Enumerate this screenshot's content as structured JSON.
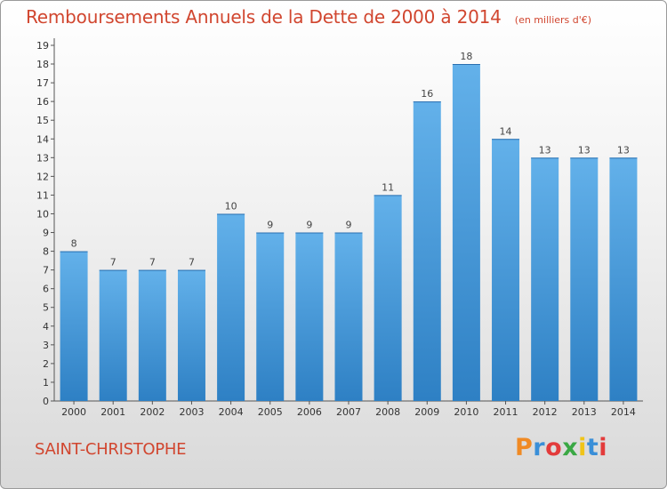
{
  "header": {
    "title": "Remboursements Annuels de la Dette de 2000 à 2014",
    "unit": "(en milliers d'€)"
  },
  "footer": {
    "place_name": "SAINT-CHRISTOPHE",
    "logo_text": "Proxiti"
  },
  "colors": {
    "title": "#d1462f",
    "bar_light": "#63b1ea",
    "bar_dark": "#2e80c4",
    "logo": [
      "#f08a24",
      "#3a8fd8",
      "#e33b3b",
      "#3aa844",
      "#f0c419",
      "#3a8fd8",
      "#e33b3b"
    ]
  },
  "chart_data": {
    "type": "bar",
    "categories": [
      "2000",
      "2001",
      "2002",
      "2003",
      "2004",
      "2005",
      "2006",
      "2007",
      "2008",
      "2009",
      "2010",
      "2011",
      "2012",
      "2013",
      "2014"
    ],
    "values": [
      8,
      7,
      7,
      7,
      10,
      9,
      9,
      9,
      11,
      16,
      18,
      14,
      13,
      13,
      13
    ],
    "ylim": [
      0,
      19
    ],
    "yticks": [
      0,
      1,
      2,
      3,
      4,
      5,
      6,
      7,
      8,
      9,
      10,
      11,
      12,
      13,
      14,
      15,
      16,
      17,
      18,
      19
    ],
    "xlabel": "",
    "ylabel": "",
    "grid": false,
    "data_labels": true
  }
}
